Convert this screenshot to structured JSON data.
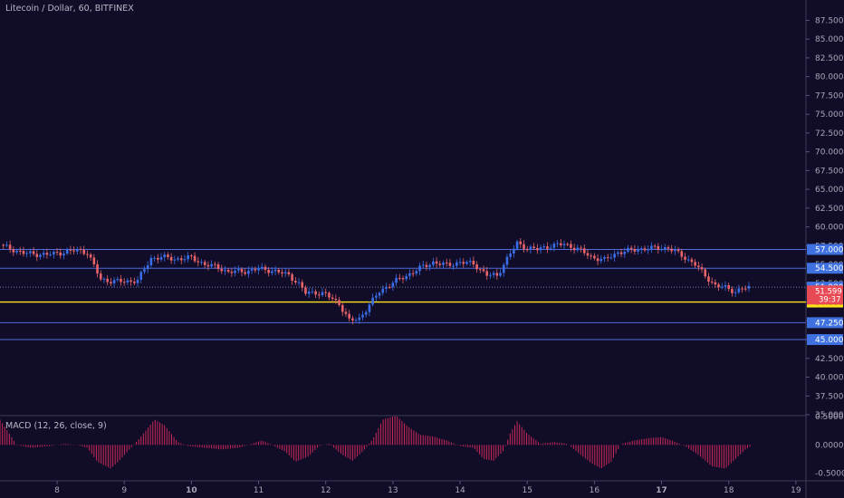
{
  "header": {
    "title": "Litecoin / Dollar, 60, BITFINEX"
  },
  "colors": {
    "background": "#110d28",
    "up": "#3a6ee8",
    "down": "#e8646a",
    "hline": "#4f6bd6",
    "yellow_line": "#ffe11a",
    "macd_hist": "#c8285a",
    "axis_text": "#a8a8b8"
  },
  "chart_data": [
    {
      "type": "candlestick",
      "title": "Litecoin / Dollar, 60, BITFINEX",
      "x_ticks": [
        "8",
        "9",
        "10",
        "11",
        "12",
        "13",
        "14",
        "15",
        "16",
        "17",
        "18",
        "19"
      ],
      "y_ticks": [
        35.0,
        37.5,
        40.0,
        42.5,
        45.0,
        47.5,
        50.0,
        52.5,
        55.0,
        57.5,
        60.0,
        62.5,
        65.0,
        67.5,
        70.0,
        72.5,
        75.0,
        77.5,
        80.0,
        82.5,
        85.0,
        87.5
      ],
      "ylim": [
        35,
        89
      ],
      "xlim": [
        7.15,
        19.15
      ],
      "horizontal_levels": [
        {
          "value": 57.0,
          "label": "57.000",
          "style": "line"
        },
        {
          "value": 54.5,
          "label": "54.500",
          "style": "line"
        },
        {
          "value": 51.98,
          "label": "51.980",
          "style": "dotted"
        },
        {
          "value": 50.0,
          "label": "50.000",
          "style": "yellow"
        },
        {
          "value": 47.25,
          "label": "47.250",
          "style": "line"
        },
        {
          "value": 45.0,
          "label": "45.000",
          "style": "line"
        }
      ],
      "last_price": {
        "value": 51.599,
        "label": "51.599",
        "countdown": "39:37"
      },
      "price_path": [
        [
          7.15,
          57.6
        ],
        [
          7.5,
          56.5
        ],
        [
          7.85,
          56.3
        ],
        [
          8.0,
          56.5
        ],
        [
          8.3,
          56.9
        ],
        [
          8.45,
          56.6
        ],
        [
          8.65,
          53.0
        ],
        [
          8.8,
          52.8
        ],
        [
          9.0,
          52.7
        ],
        [
          9.2,
          52.9
        ],
        [
          9.4,
          55.8
        ],
        [
          9.55,
          56.0
        ],
        [
          9.75,
          55.7
        ],
        [
          10.0,
          55.9
        ],
        [
          10.2,
          55.0
        ],
        [
          10.4,
          54.6
        ],
        [
          10.55,
          54.0
        ],
        [
          10.8,
          54.1
        ],
        [
          11.0,
          54.4
        ],
        [
          11.2,
          54.2
        ],
        [
          11.45,
          53.6
        ],
        [
          11.6,
          52.4
        ],
        [
          11.7,
          51.2
        ],
        [
          11.85,
          51.3
        ],
        [
          12.0,
          51.0
        ],
        [
          12.2,
          49.8
        ],
        [
          12.35,
          47.5
        ],
        [
          12.5,
          47.8
        ],
        [
          12.65,
          49.6
        ],
        [
          12.8,
          51.4
        ],
        [
          13.0,
          52.6
        ],
        [
          13.2,
          53.5
        ],
        [
          13.4,
          54.5
        ],
        [
          13.6,
          55.3
        ],
        [
          13.8,
          54.9
        ],
        [
          14.0,
          55.3
        ],
        [
          14.2,
          55.1
        ],
        [
          14.4,
          53.6
        ],
        [
          14.55,
          53.5
        ],
        [
          14.7,
          55.8
        ],
        [
          14.85,
          57.8
        ],
        [
          15.0,
          57.2
        ],
        [
          15.15,
          57.0
        ],
        [
          15.35,
          57.5
        ],
        [
          15.55,
          57.7
        ],
        [
          15.75,
          57.1
        ],
        [
          15.95,
          56.0
        ],
        [
          16.15,
          55.6
        ],
        [
          16.35,
          56.6
        ],
        [
          16.55,
          56.9
        ],
        [
          16.75,
          57.1
        ],
        [
          16.95,
          57.2
        ],
        [
          17.1,
          57.2
        ],
        [
          17.3,
          56.2
        ],
        [
          17.5,
          55.0
        ],
        [
          17.65,
          53.5
        ],
        [
          17.8,
          52.2
        ],
        [
          17.95,
          51.9
        ],
        [
          18.1,
          51.4
        ],
        [
          18.2,
          51.8
        ],
        [
          18.35,
          51.9
        ]
      ]
    },
    {
      "type": "histogram",
      "title": "MACD (12, 26, close, 9)",
      "y_ticks": [
        0.5,
        0.0,
        -0.5
      ],
      "y_tick_labels": [
        "0.5000",
        "0.0000",
        "-0.5000"
      ],
      "ylim": [
        -0.62,
        0.52
      ],
      "values_path": [
        [
          7.15,
          0.45
        ],
        [
          7.3,
          0.18
        ],
        [
          7.4,
          0.0
        ],
        [
          7.6,
          -0.05
        ],
        [
          7.9,
          -0.02
        ],
        [
          8.1,
          0.02
        ],
        [
          8.3,
          0.0
        ],
        [
          8.45,
          -0.05
        ],
        [
          8.6,
          -0.3
        ],
        [
          8.8,
          -0.42
        ],
        [
          8.95,
          -0.25
        ],
        [
          9.1,
          -0.05
        ],
        [
          9.25,
          0.15
        ],
        [
          9.45,
          0.45
        ],
        [
          9.6,
          0.35
        ],
        [
          9.8,
          0.05
        ],
        [
          9.95,
          -0.02
        ],
        [
          10.2,
          -0.05
        ],
        [
          10.45,
          -0.08
        ],
        [
          10.7,
          -0.05
        ],
        [
          10.9,
          0.02
        ],
        [
          11.05,
          0.08
        ],
        [
          11.2,
          0.0
        ],
        [
          11.4,
          -0.12
        ],
        [
          11.55,
          -0.3
        ],
        [
          11.75,
          -0.2
        ],
        [
          11.9,
          -0.02
        ],
        [
          12.05,
          0.02
        ],
        [
          12.25,
          -0.18
        ],
        [
          12.4,
          -0.28
        ],
        [
          12.55,
          -0.12
        ],
        [
          12.7,
          0.1
        ],
        [
          12.85,
          0.45
        ],
        [
          13.05,
          0.52
        ],
        [
          13.2,
          0.35
        ],
        [
          13.4,
          0.18
        ],
        [
          13.6,
          0.15
        ],
        [
          13.8,
          0.08
        ],
        [
          14.0,
          -0.02
        ],
        [
          14.2,
          -0.05
        ],
        [
          14.35,
          -0.25
        ],
        [
          14.5,
          -0.28
        ],
        [
          14.65,
          -0.1
        ],
        [
          14.75,
          0.22
        ],
        [
          14.85,
          0.42
        ],
        [
          15.0,
          0.2
        ],
        [
          15.2,
          0.02
        ],
        [
          15.4,
          0.05
        ],
        [
          15.6,
          0.02
        ],
        [
          15.8,
          -0.18
        ],
        [
          15.95,
          -0.32
        ],
        [
          16.1,
          -0.42
        ],
        [
          16.25,
          -0.3
        ],
        [
          16.4,
          0.02
        ],
        [
          16.6,
          0.08
        ],
        [
          16.8,
          0.12
        ],
        [
          17.0,
          0.14
        ],
        [
          17.15,
          0.08
        ],
        [
          17.35,
          -0.02
        ],
        [
          17.55,
          -0.18
        ],
        [
          17.75,
          -0.38
        ],
        [
          17.95,
          -0.42
        ],
        [
          18.1,
          -0.25
        ],
        [
          18.25,
          -0.08
        ],
        [
          18.35,
          0.0
        ]
      ]
    }
  ]
}
